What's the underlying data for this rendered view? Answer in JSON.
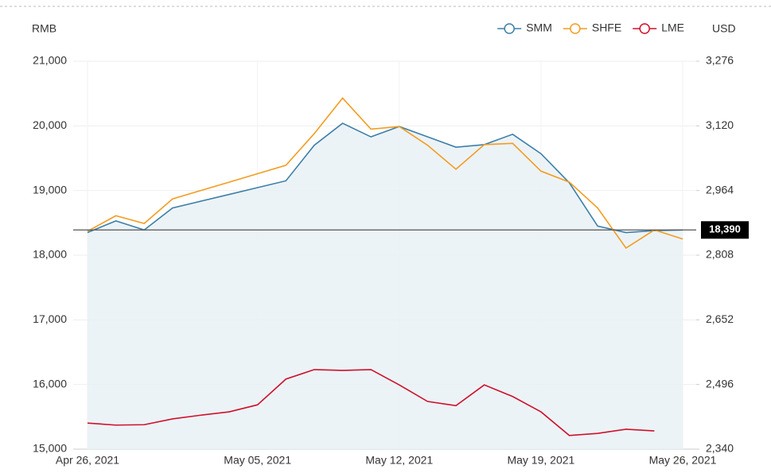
{
  "chart_data": {
    "type": "line",
    "y_axis_label": "RMB",
    "y2_axis_label": "USD",
    "categories": [
      "Apr 26, 2021",
      null,
      null,
      null,
      null,
      null,
      "May 05, 2021",
      null,
      null,
      null,
      null,
      "May 12, 2021",
      null,
      null,
      null,
      null,
      "May 19, 2021",
      null,
      null,
      null,
      null,
      "May 26, 2021"
    ],
    "series": [
      {
        "name": "SMM",
        "color": "#3d7fa8",
        "area": true,
        "values": [
          18350,
          18530,
          18390,
          18730,
          18835,
          18940,
          19045,
          19150,
          19700,
          20040,
          19830,
          19990,
          19830,
          19670,
          19710,
          19870,
          19570,
          19120,
          18450,
          18350,
          18380,
          18390
        ]
      },
      {
        "name": "SHFE",
        "color": "#f39c1f",
        "values": [
          18370,
          18610,
          18490,
          18870,
          19000,
          19130,
          19260,
          19390,
          19880,
          20430,
          19950,
          19990,
          19700,
          19330,
          19710,
          19730,
          19300,
          19130,
          18730,
          18110,
          18390,
          18250
        ]
      },
      {
        "name": "LME",
        "color": "#d0102a",
        "axis": "y2",
        "values": [
          2403,
          2398,
          2399,
          2413,
          2422,
          2430,
          2447,
          2509,
          2532,
          2530,
          2532,
          2495,
          2455,
          2445,
          2495,
          2467,
          2430,
          2373,
          2378,
          2388,
          2384,
          null
        ]
      }
    ],
    "current_price": {
      "value": 18390,
      "label": "18,390"
    },
    "ylim": [
      15000,
      21000
    ],
    "yticks": [
      {
        "value": 15000,
        "label": "15,000"
      },
      {
        "value": 16000,
        "label": "16,000"
      },
      {
        "value": 17000,
        "label": "17,000"
      },
      {
        "value": 18000,
        "label": "18,000"
      },
      {
        "value": 19000,
        "label": "19,000"
      },
      {
        "value": 20000,
        "label": "20,000"
      },
      {
        "value": 21000,
        "label": "21,000"
      }
    ],
    "y2lim": [
      2340,
      3276
    ],
    "y2ticks": [
      {
        "value": 2340,
        "label": "2,340"
      },
      {
        "value": 2496,
        "label": "2,496"
      },
      {
        "value": 2652,
        "label": "2,652"
      },
      {
        "value": 2808,
        "label": "2,808"
      },
      {
        "value": 2964,
        "label": "2,964"
      },
      {
        "value": 3120,
        "label": "3,120"
      },
      {
        "value": 3276,
        "label": "3,276"
      }
    ],
    "grid": true
  }
}
